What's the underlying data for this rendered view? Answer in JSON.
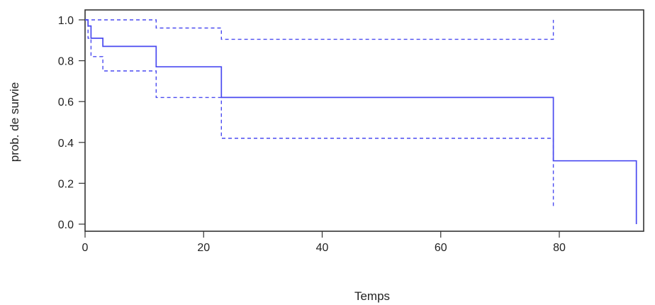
{
  "chart_data": {
    "type": "line",
    "subtype": "kaplan-meier step curve with confidence interval",
    "title": "",
    "xlabel": "Temps",
    "ylabel": "prob. de survie",
    "xlim": [
      0,
      95
    ],
    "ylim": [
      0,
      1.05
    ],
    "x_ticks": [
      "0",
      "20",
      "40",
      "60",
      "80"
    ],
    "y_ticks": [
      "0.0",
      "0.2",
      "0.4",
      "0.6",
      "0.8",
      "1.0"
    ],
    "x_tick_values": [
      0,
      20,
      40,
      60,
      80
    ],
    "y_tick_values": [
      0,
      0.2,
      0.4,
      0.6,
      0.8,
      1.0
    ],
    "grid": false,
    "legend": "none",
    "line_color": "#4a4af0",
    "axis_color": "#333333",
    "series": [
      {
        "role": "estimate",
        "style": "solid",
        "points": [
          [
            0,
            1.0
          ],
          [
            0.5,
            1.0
          ],
          [
            0.5,
            0.97
          ],
          [
            1,
            0.97
          ],
          [
            1,
            0.91
          ],
          [
            3,
            0.91
          ],
          [
            3,
            0.87
          ],
          [
            12,
            0.87
          ],
          [
            12,
            0.77
          ],
          [
            23,
            0.77
          ],
          [
            23,
            0.62
          ],
          [
            79,
            0.62
          ],
          [
            79,
            0.31
          ],
          [
            93,
            0.31
          ],
          [
            93,
            0.0
          ]
        ]
      },
      {
        "role": "upper",
        "style": "dashed",
        "points": [
          [
            0,
            1.0
          ],
          [
            12,
            1.0
          ],
          [
            12,
            0.96
          ],
          [
            23,
            0.96
          ],
          [
            23,
            0.905
          ],
          [
            79,
            0.905
          ],
          [
            79,
            1.0
          ]
        ]
      },
      {
        "role": "lower",
        "style": "dashed",
        "points": [
          [
            0,
            1.0
          ],
          [
            0.5,
            1.0
          ],
          [
            0.5,
            0.91
          ],
          [
            1,
            0.91
          ],
          [
            1,
            0.82
          ],
          [
            3,
            0.82
          ],
          [
            3,
            0.75
          ],
          [
            12,
            0.75
          ],
          [
            12,
            0.62
          ],
          [
            23,
            0.62
          ],
          [
            23,
            0.42
          ],
          [
            79,
            0.42
          ],
          [
            79,
            0.08
          ]
        ]
      }
    ]
  }
}
